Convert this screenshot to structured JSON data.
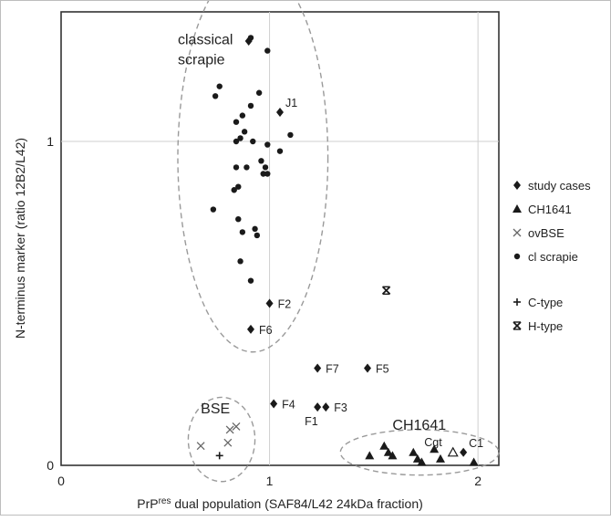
{
  "chart_data": {
    "type": "scatter",
    "xlabel": {
      "pre": "PrP",
      "sup": "res",
      "post": " dual population (SAF84/L42 24kDa fraction)"
    },
    "ylabel": "N-terminus marker (ratio 12B2/L42)",
    "xlim": [
      0,
      2.1
    ],
    "ylim": [
      0,
      1.4
    ],
    "x_ticks": [
      {
        "value": 0,
        "label": "0"
      },
      {
        "value": 1,
        "label": "1"
      },
      {
        "value": 2,
        "label": "2"
      }
    ],
    "y_ticks": [
      {
        "value": 0,
        "label": "0"
      },
      {
        "value": 1,
        "label": "1"
      }
    ],
    "grid": "major gridlines at x=1, x=2 and y=1",
    "legend_position": "right",
    "legend": [
      {
        "name": "study cases",
        "marker": "diamond"
      },
      {
        "name": "CH1641",
        "marker": "triangle"
      },
      {
        "name": "ovBSE",
        "marker": "x"
      },
      {
        "name": "cl scrapie",
        "marker": "circle"
      },
      {
        "name": "C-type",
        "marker": "plus"
      },
      {
        "name": "H-type",
        "marker": "star-x"
      }
    ],
    "series": [
      {
        "name": "study cases",
        "marker": "diamond",
        "points": [
          {
            "x": 0.9,
            "y": 1.31,
            "label": ""
          },
          {
            "x": 1.05,
            "y": 1.09,
            "label": "J1"
          },
          {
            "x": 1.0,
            "y": 0.5,
            "label": "F2"
          },
          {
            "x": 0.91,
            "y": 0.42,
            "label": "F6"
          },
          {
            "x": 1.23,
            "y": 0.3,
            "label": "F7"
          },
          {
            "x": 1.47,
            "y": 0.3,
            "label": "F5"
          },
          {
            "x": 1.02,
            "y": 0.19,
            "label": "F4"
          },
          {
            "x": 1.23,
            "y": 0.18,
            "label": "F1"
          },
          {
            "x": 1.27,
            "y": 0.18,
            "label": "F3"
          },
          {
            "x": 1.93,
            "y": 0.04,
            "label": "C1"
          }
        ]
      },
      {
        "name": "CH1641",
        "marker": "triangle",
        "points": [
          {
            "x": 1.48,
            "y": 0.03
          },
          {
            "x": 1.55,
            "y": 0.06
          },
          {
            "x": 1.57,
            "y": 0.04
          },
          {
            "x": 1.59,
            "y": 0.03
          },
          {
            "x": 1.69,
            "y": 0.04
          },
          {
            "x": 1.71,
            "y": 0.02
          },
          {
            "x": 1.73,
            "y": 0.01
          },
          {
            "x": 1.79,
            "y": 0.05
          },
          {
            "x": 1.82,
            "y": 0.02
          },
          {
            "x": 1.98,
            "y": 0.01
          }
        ]
      },
      {
        "name": "Cgt",
        "marker": "triangle-open",
        "points": [
          {
            "x": 1.88,
            "y": 0.04,
            "label": "Cgt"
          }
        ]
      },
      {
        "name": "ovBSE",
        "marker": "x",
        "points": [
          {
            "x": 0.67,
            "y": 0.06
          },
          {
            "x": 0.8,
            "y": 0.07
          },
          {
            "x": 0.81,
            "y": 0.11
          },
          {
            "x": 0.84,
            "y": 0.12
          }
        ]
      },
      {
        "name": "cl scrapie",
        "marker": "circle",
        "points": [
          {
            "x": 0.91,
            "y": 1.32
          },
          {
            "x": 0.99,
            "y": 1.28
          },
          {
            "x": 0.76,
            "y": 1.17
          },
          {
            "x": 0.74,
            "y": 1.14
          },
          {
            "x": 0.95,
            "y": 1.15
          },
          {
            "x": 0.91,
            "y": 1.11
          },
          {
            "x": 0.87,
            "y": 1.08
          },
          {
            "x": 0.84,
            "y": 1.06
          },
          {
            "x": 0.88,
            "y": 1.03
          },
          {
            "x": 1.1,
            "y": 1.02
          },
          {
            "x": 0.86,
            "y": 1.01
          },
          {
            "x": 0.84,
            "y": 1.0
          },
          {
            "x": 0.92,
            "y": 1.0
          },
          {
            "x": 0.99,
            "y": 0.99
          },
          {
            "x": 1.05,
            "y": 0.97
          },
          {
            "x": 0.96,
            "y": 0.94
          },
          {
            "x": 0.84,
            "y": 0.92
          },
          {
            "x": 0.89,
            "y": 0.92
          },
          {
            "x": 0.98,
            "y": 0.92
          },
          {
            "x": 0.97,
            "y": 0.9
          },
          {
            "x": 0.99,
            "y": 0.9
          },
          {
            "x": 0.85,
            "y": 0.86
          },
          {
            "x": 0.83,
            "y": 0.85
          },
          {
            "x": 0.73,
            "y": 0.79
          },
          {
            "x": 0.85,
            "y": 0.76
          },
          {
            "x": 0.93,
            "y": 0.73
          },
          {
            "x": 0.87,
            "y": 0.72
          },
          {
            "x": 0.94,
            "y": 0.71
          },
          {
            "x": 0.86,
            "y": 0.63
          },
          {
            "x": 0.91,
            "y": 0.57
          }
        ]
      },
      {
        "name": "C-type",
        "marker": "plus",
        "points": [
          {
            "x": 0.76,
            "y": 0.03
          }
        ]
      },
      {
        "name": "H-type",
        "marker": "star-x",
        "points": [
          {
            "x": 1.56,
            "y": 0.54
          }
        ]
      }
    ],
    "group_annotations": [
      {
        "text": [
          "classical",
          "scrapie"
        ],
        "anchor": {
          "x": 0.56,
          "y": 1.3
        }
      },
      {
        "text": [
          "BSE"
        ],
        "anchor": {
          "x": 0.67,
          "y": 0.16
        }
      },
      {
        "text": [
          "CH1641"
        ],
        "anchor": {
          "x": 1.59,
          "y": 0.11
        }
      }
    ],
    "group_ellipses": [
      {
        "group": "classical scrapie",
        "cx": 0.92,
        "cy": 0.95,
        "rx": 0.36,
        "ry": 0.6
      },
      {
        "group": "BSE",
        "cx": 0.77,
        "cy": 0.08,
        "rx": 0.16,
        "ry": 0.13
      },
      {
        "group": "CH1641",
        "cx": 1.72,
        "cy": 0.04,
        "rx": 0.38,
        "ry": 0.07
      }
    ],
    "label_offsets": {
      "J1": "upper-right",
      "F2": "right",
      "F6": "right",
      "F7": "right",
      "F5": "right",
      "F4": "right",
      "F1": "below-left",
      "F3": "right",
      "C1": "upper-right",
      "Cgt": "upper-left"
    }
  }
}
